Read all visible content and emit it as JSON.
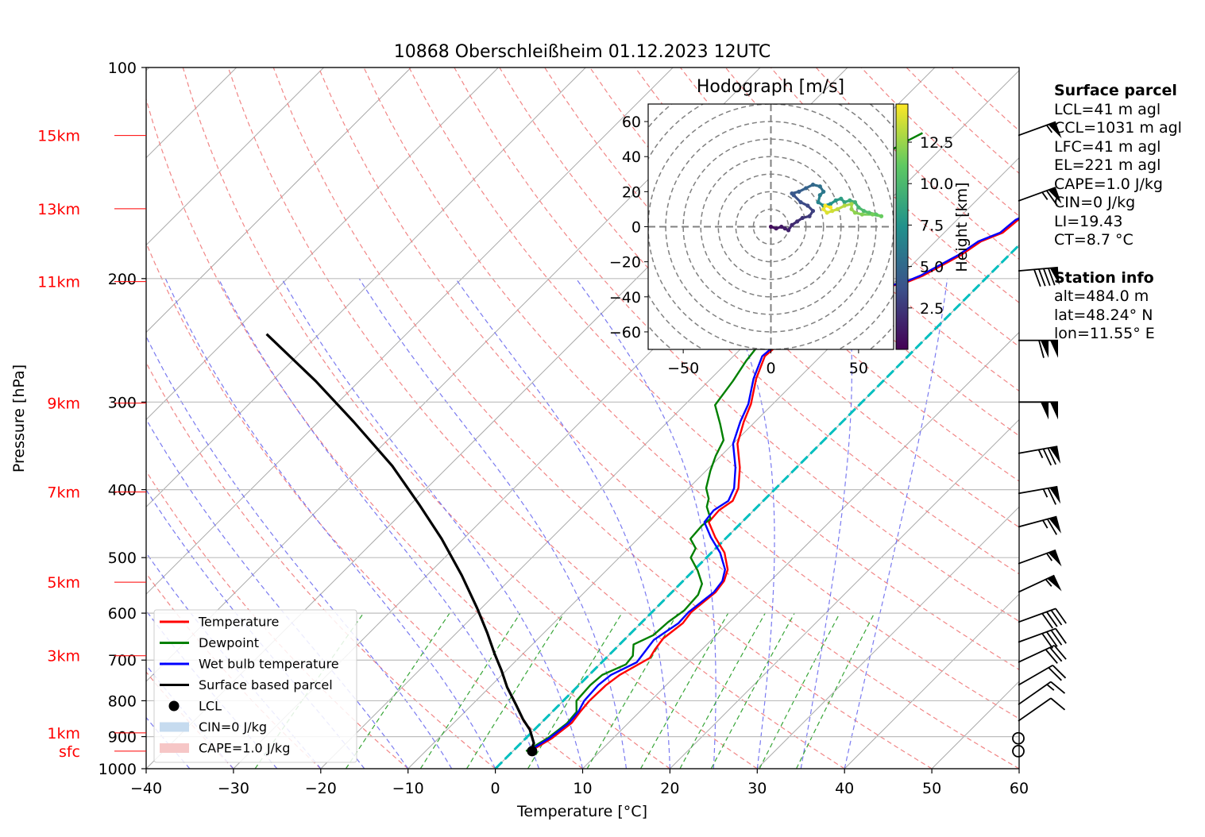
{
  "chart_data": {
    "type": "skew-t log-p diagram",
    "title": "10868 Oberschleißheim 01.12.2023 12UTC",
    "xlabel": "Temperature [°C]",
    "ylabel": "Pressure [hPa]",
    "xlim": [
      -40,
      60
    ],
    "ylim_hpa": [
      1000,
      100
    ],
    "x_ticks": [
      "−40",
      "−30",
      "−20",
      "−10",
      "0",
      "10",
      "20",
      "30",
      "40",
      "50",
      "60"
    ],
    "y_ticks": [
      {
        "p": 100,
        "label": "100"
      },
      {
        "p": 200,
        "label": "200"
      },
      {
        "p": 300,
        "label": "300"
      },
      {
        "p": 400,
        "label": "400"
      },
      {
        "p": 500,
        "label": "500"
      },
      {
        "p": 600,
        "label": "600"
      },
      {
        "p": 700,
        "label": "700"
      },
      {
        "p": 800,
        "label": "800"
      },
      {
        "p": 900,
        "label": "900"
      },
      {
        "p": 1000,
        "label": "1000"
      }
    ],
    "height_labels": [
      {
        "label": "15km",
        "p": 125
      },
      {
        "label": "13km",
        "p": 159
      },
      {
        "label": "11km",
        "p": 202
      },
      {
        "label": "9km",
        "p": 301
      },
      {
        "label": "7km",
        "p": 403
      },
      {
        "label": "5km",
        "p": 542
      },
      {
        "label": "3km",
        "p": 690
      },
      {
        "label": "1km",
        "p": 889
      },
      {
        "label": "sfc",
        "p": 944
      }
    ],
    "series": [
      {
        "name": "Temperature",
        "color": "#ff0000",
        "points": [
          [
            2.0,
            944
          ],
          [
            3.0,
            905
          ],
          [
            3.5,
            860
          ],
          [
            3.2,
            830
          ],
          [
            3.0,
            800
          ],
          [
            3.1,
            760
          ],
          [
            3.5,
            735
          ],
          [
            5.0,
            695
          ],
          [
            4.6,
            675
          ],
          [
            4.3,
            652
          ],
          [
            4.8,
            620
          ],
          [
            4.5,
            598
          ],
          [
            5.0,
            560
          ],
          [
            4.7,
            540
          ],
          [
            3.8,
            520
          ],
          [
            1.5,
            492
          ],
          [
            -1.3,
            468
          ],
          [
            -3.8,
            445
          ],
          [
            -4.0,
            428
          ],
          [
            -3.5,
            415
          ],
          [
            -4.3,
            398
          ],
          [
            -6.5,
            372
          ],
          [
            -9.5,
            344
          ],
          [
            -11.3,
            320
          ],
          [
            -12.5,
            302
          ],
          [
            -14.8,
            278
          ],
          [
            -16.4,
            258
          ],
          [
            -16.0,
            242
          ],
          [
            -16.3,
            228
          ],
          [
            -15.0,
            220
          ],
          [
            -13.5,
            212
          ],
          [
            -11.0,
            206
          ],
          [
            -10.0,
            205
          ],
          [
            -8.5,
            202
          ],
          [
            -7.5,
            198
          ],
          [
            -6.6,
            192
          ],
          [
            -5.5,
            185
          ],
          [
            -4.8,
            177
          ],
          [
            -3.3,
            172
          ],
          [
            -3.0,
            165
          ],
          [
            -1.8,
            160
          ],
          [
            -0.7,
            155
          ],
          [
            0.0,
            148
          ],
          [
            0.4,
            143
          ],
          [
            0.5,
            137
          ],
          [
            1.0,
            130
          ],
          [
            1.8,
            126
          ],
          [
            2.5,
            123
          ],
          [
            3.5,
            121
          ],
          [
            3.7,
            117
          ]
        ]
      },
      {
        "name": "Dewpoint",
        "color": "#008000",
        "points": [
          [
            1.5,
            944
          ],
          [
            2.5,
            905
          ],
          [
            3.0,
            862
          ],
          [
            2.8,
            830
          ],
          [
            1.5,
            800
          ],
          [
            1.3,
            760
          ],
          [
            1.5,
            735
          ],
          [
            3.0,
            710
          ],
          [
            2.8,
            690
          ],
          [
            1.6,
            665
          ],
          [
            2.8,
            645
          ],
          [
            3.0,
            618
          ],
          [
            3.5,
            595
          ],
          [
            3.3,
            565
          ],
          [
            2.5,
            545
          ],
          [
            0.5,
            522
          ],
          [
            -1.8,
            500
          ],
          [
            -2.3,
            485
          ],
          [
            -4.0,
            470
          ],
          [
            -4.2,
            450
          ],
          [
            -4.0,
            440
          ],
          [
            -5.8,
            423
          ],
          [
            -6.5,
            412
          ],
          [
            -8.0,
            398
          ],
          [
            -9.5,
            376
          ],
          [
            -10.6,
            358
          ],
          [
            -11.5,
            340
          ],
          [
            -13.8,
            322
          ],
          [
            -16.5,
            303
          ],
          [
            -17.2,
            280
          ],
          [
            -18.0,
            262
          ],
          [
            -18.5,
            245
          ],
          [
            -19.3,
            232
          ],
          [
            -19.5,
            222
          ],
          [
            -20.2,
            212
          ],
          [
            -22.2,
            208
          ],
          [
            -25.0,
            206
          ],
          [
            -27.2,
            201
          ],
          [
            -29.0,
            193
          ],
          [
            -29.8,
            187
          ],
          [
            -31.0,
            177
          ],
          [
            -31.4,
            170
          ],
          [
            -31.2,
            162
          ],
          [
            -30.0,
            152
          ],
          [
            -28.7,
            143
          ],
          [
            -26.5,
            137
          ],
          [
            -25.5,
            131
          ],
          [
            -24.7,
            127
          ],
          [
            -23.9,
            124
          ]
        ]
      },
      {
        "name": "Wet bulb temperature",
        "color": "#0000ff",
        "points": [
          [
            1.8,
            944
          ],
          [
            2.7,
            905
          ],
          [
            3.2,
            860
          ],
          [
            3.0,
            830
          ],
          [
            2.4,
            800
          ],
          [
            2.2,
            760
          ],
          [
            2.5,
            735
          ],
          [
            4.0,
            705
          ],
          [
            3.7,
            680
          ],
          [
            3.4,
            655
          ],
          [
            4.3,
            620
          ],
          [
            4.2,
            598
          ],
          [
            4.8,
            560
          ],
          [
            4.5,
            540
          ],
          [
            3.5,
            520
          ],
          [
            1.0,
            492
          ],
          [
            -1.8,
            468
          ],
          [
            -4.3,
            445
          ],
          [
            -4.6,
            428
          ],
          [
            -4.0,
            415
          ],
          [
            -4.8,
            398
          ],
          [
            -7.0,
            372
          ],
          [
            -10.0,
            344
          ],
          [
            -11.7,
            320
          ],
          [
            -12.8,
            302
          ],
          [
            -15.1,
            278
          ],
          [
            -16.7,
            258
          ],
          [
            -16.3,
            242
          ],
          [
            -16.6,
            228
          ],
          [
            -15.3,
            220
          ],
          [
            -13.8,
            212
          ],
          [
            -11.3,
            206
          ],
          [
            -10.3,
            205
          ],
          [
            -8.8,
            202
          ],
          [
            -7.8,
            198
          ],
          [
            -6.9,
            192
          ],
          [
            -5.8,
            185
          ],
          [
            -5.1,
            177
          ],
          [
            -3.6,
            172
          ],
          [
            -3.3,
            165
          ],
          [
            -2.1,
            160
          ],
          [
            -1.0,
            155
          ],
          [
            -0.3,
            148
          ],
          [
            0.1,
            143
          ],
          [
            0.2,
            137
          ],
          [
            0.7,
            130
          ],
          [
            1.5,
            126
          ],
          [
            2.2,
            123
          ],
          [
            3.2,
            121
          ],
          [
            3.4,
            117
          ]
        ]
      },
      {
        "name": "Surface based parcel",
        "color": "#000000",
        "points": [
          [
            2.0,
            944
          ],
          [
            1.5,
            920
          ],
          [
            -0.5,
            880
          ],
          [
            -2.5,
            850
          ],
          [
            -5.0,
            810
          ],
          [
            -8.0,
            765
          ],
          [
            -10.5,
            725
          ],
          [
            -13.3,
            685
          ],
          [
            -16.5,
            640
          ],
          [
            -20.5,
            590
          ],
          [
            -26.0,
            530
          ],
          [
            -32.5,
            470
          ],
          [
            -39.0,
            420
          ],
          [
            -46.5,
            370
          ],
          [
            -56.0,
            320
          ],
          [
            -65.0,
            280
          ],
          [
            -76.0,
            240
          ]
        ]
      }
    ],
    "legend": [
      {
        "label": "Temperature",
        "kind": "line",
        "color": "#ff0000"
      },
      {
        "label": "Dewpoint",
        "kind": "line",
        "color": "#008000"
      },
      {
        "label": "Wet bulb temperature",
        "kind": "line",
        "color": "#0000ff"
      },
      {
        "label": "Surface based parcel",
        "kind": "line",
        "color": "#000000"
      },
      {
        "label": "LCL",
        "kind": "dot",
        "color": "#000000"
      },
      {
        "label": "CIN=0 J/kg",
        "kind": "patch",
        "color": "#c6dbef"
      },
      {
        "label": "CAPE=1.0 J/kg",
        "kind": "patch",
        "color": "#f6c6c6"
      }
    ],
    "legend_position": "lower left",
    "lcl_point": {
      "t": 2.2,
      "p": 944
    },
    "zero_isotherm_color": "#00bfbf",
    "wind_barbs": [
      {
        "p": 944,
        "calm": true
      },
      {
        "p": 905,
        "calm": true
      },
      {
        "p": 855,
        "spd": 10,
        "dir": 235
      },
      {
        "p": 810,
        "spd": 15,
        "dir": 235
      },
      {
        "p": 760,
        "spd": 20,
        "dir": 240
      },
      {
        "p": 705,
        "spd": 30,
        "dir": 245
      },
      {
        "p": 660,
        "spd": 40,
        "dir": 250
      },
      {
        "p": 618,
        "spd": 40,
        "dir": 250
      },
      {
        "p": 560,
        "spd": 55,
        "dir": 245
      },
      {
        "p": 510,
        "spd": 55,
        "dir": 250
      },
      {
        "p": 452,
        "spd": 65,
        "dir": 255
      },
      {
        "p": 405,
        "spd": 65,
        "dir": 260
      },
      {
        "p": 355,
        "spd": 75,
        "dir": 260
      },
      {
        "p": 300,
        "spd": 100,
        "dir": 270
      },
      {
        "p": 245,
        "spd": 110,
        "dir": 270
      },
      {
        "p": 195,
        "spd": 90,
        "dir": 265
      },
      {
        "p": 155,
        "spd": 65,
        "dir": 250
      },
      {
        "p": 125,
        "spd": 55,
        "dir": 250
      }
    ],
    "hodograph": {
      "title": "Hodograph [m/s]",
      "xlim": [
        -70,
        70
      ],
      "ylim": [
        -70,
        70
      ],
      "x_ticks": [
        "−50",
        "0",
        "50"
      ],
      "y_ticks": [
        "60",
        "40",
        "20",
        "0",
        "−20",
        "−40",
        "−60"
      ],
      "ring_step": 10,
      "colorbar": {
        "label": "Height [km]",
        "range": [
          0,
          14.8
        ],
        "ticks": [
          "2.5",
          "5.0",
          "7.5",
          "10.0",
          "12.5"
        ],
        "colormap": "viridis"
      },
      "points": [
        {
          "u": 0,
          "v": 0,
          "h": 0.5
        },
        {
          "u": 3,
          "v": -1,
          "h": 0.8
        },
        {
          "u": 6,
          "v": 0,
          "h": 1.0
        },
        {
          "u": 8,
          "v": -1,
          "h": 1.3
        },
        {
          "u": 10,
          "v": -2,
          "h": 1.5
        },
        {
          "u": 12,
          "v": 1,
          "h": 1.8
        },
        {
          "u": 15,
          "v": 3,
          "h": 2.0
        },
        {
          "u": 18,
          "v": 5,
          "h": 2.3
        },
        {
          "u": 22,
          "v": 6,
          "h": 2.6
        },
        {
          "u": 24,
          "v": 9,
          "h": 2.9
        },
        {
          "u": 21,
          "v": 12,
          "h": 3.2
        },
        {
          "u": 17,
          "v": 14,
          "h": 3.5
        },
        {
          "u": 13,
          "v": 18,
          "h": 3.8
        },
        {
          "u": 12,
          "v": 19,
          "h": 4.0
        },
        {
          "u": 16,
          "v": 20,
          "h": 4.3
        },
        {
          "u": 20,
          "v": 22,
          "h": 4.6
        },
        {
          "u": 24,
          "v": 24,
          "h": 5.0
        },
        {
          "u": 28,
          "v": 23,
          "h": 5.4
        },
        {
          "u": 30,
          "v": 20,
          "h": 5.8
        },
        {
          "u": 28,
          "v": 18,
          "h": 6.2
        },
        {
          "u": 27,
          "v": 14,
          "h": 6.6
        },
        {
          "u": 30,
          "v": 12,
          "h": 7.0
        },
        {
          "u": 34,
          "v": 13,
          "h": 7.4
        },
        {
          "u": 37,
          "v": 15,
          "h": 7.8
        },
        {
          "u": 40,
          "v": 16,
          "h": 8.2
        },
        {
          "u": 42,
          "v": 14,
          "h": 8.6
        },
        {
          "u": 45,
          "v": 15,
          "h": 9.0
        },
        {
          "u": 48,
          "v": 14,
          "h": 9.4
        },
        {
          "u": 50,
          "v": 11,
          "h": 9.8
        },
        {
          "u": 53,
          "v": 9,
          "h": 10.2
        },
        {
          "u": 56,
          "v": 8,
          "h": 10.6
        },
        {
          "u": 60,
          "v": 7,
          "h": 11.0
        },
        {
          "u": 63,
          "v": 6,
          "h": 11.3
        },
        {
          "u": 58,
          "v": 7,
          "h": 11.6
        },
        {
          "u": 52,
          "v": 7,
          "h": 11.9
        },
        {
          "u": 48,
          "v": 8,
          "h": 12.2
        },
        {
          "u": 46,
          "v": 10,
          "h": 12.5
        },
        {
          "u": 46,
          "v": 13,
          "h": 12.8
        },
        {
          "u": 42,
          "v": 12,
          "h": 13.1
        },
        {
          "u": 38,
          "v": 10,
          "h": 13.4
        },
        {
          "u": 35,
          "v": 9,
          "h": 13.7
        },
        {
          "u": 32,
          "v": 8,
          "h": 14.0
        },
        {
          "u": 30,
          "v": 10,
          "h": 14.3
        },
        {
          "u": 31,
          "v": 12,
          "h": 14.6
        },
        {
          "u": 34,
          "v": 11,
          "h": 14.8
        }
      ]
    }
  },
  "side_panel": {
    "surface_header": "Surface parcel",
    "lcl": "LCL=41 m agl",
    "ccl": "CCL=1031 m agl",
    "lfc": "LFC=41 m agl",
    "el": "EL=221 m agl",
    "cape": "CAPE=1.0 J/kg",
    "cin": "CIN=0 J/kg",
    "li": "LI=19.43",
    "ct": "CT=8.7 °C",
    "station_header": "Station info",
    "alt": "alt=484.0 m",
    "lat": "lat=48.24° N",
    "lon": "lon=11.55° E"
  }
}
